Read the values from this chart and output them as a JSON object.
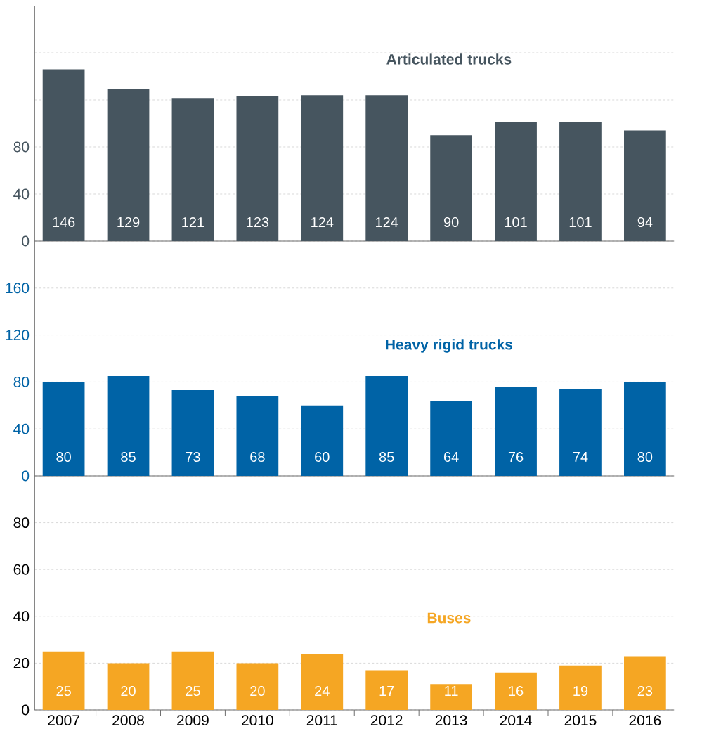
{
  "chart_data": [
    {
      "type": "bar",
      "title": "Articulated trucks",
      "categories": [
        "2007",
        "2008",
        "2009",
        "2010",
        "2011",
        "2012",
        "2013",
        "2014",
        "2015",
        "2016"
      ],
      "values": [
        146,
        129,
        121,
        123,
        124,
        124,
        90,
        101,
        101,
        94
      ],
      "color": "#46555f",
      "ylim": [
        0,
        200
      ],
      "yticks": [
        0,
        40,
        80,
        {
          "value": 120,
          "label": null
        },
        {
          "value": 160,
          "label": null
        }
      ],
      "grid": "y",
      "data_labels": true,
      "tick_labels": "y"
    },
    {
      "type": "bar",
      "title": "Heavy rigid trucks",
      "categories": [
        "2007",
        "2008",
        "2009",
        "2010",
        "2011",
        "2012",
        "2013",
        "2014",
        "2015",
        "2016"
      ],
      "values": [
        80,
        85,
        73,
        68,
        60,
        85,
        64,
        76,
        74,
        80
      ],
      "color": "#0063a6",
      "ylim": [
        0,
        200
      ],
      "yticks": [
        0,
        40,
        80,
        120,
        160
      ],
      "grid": "y",
      "data_labels": true,
      "tick_labels": "y"
    },
    {
      "type": "bar",
      "title": "Buses",
      "categories": [
        "2007",
        "2008",
        "2009",
        "2010",
        "2011",
        "2012",
        "2013",
        "2014",
        "2015",
        "2016"
      ],
      "values": [
        25,
        20,
        25,
        20,
        24,
        17,
        11,
        16,
        19,
        23
      ],
      "color": "#f5a623",
      "ylim": [
        0,
        100
      ],
      "yticks": [
        0,
        20,
        40,
        60,
        80
      ],
      "grid": "y",
      "data_labels": true
    }
  ]
}
